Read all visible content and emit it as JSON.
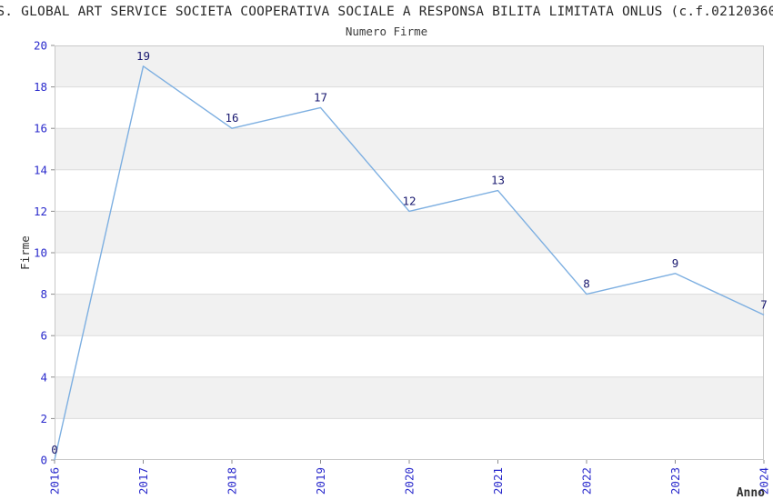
{
  "header": {
    "title": "S. GLOBAL ART SERVICE SOCIETA COOPERATIVA SOCIALE A RESPONSA BILITA LIMITATA ONLUS (c.f.02120360",
    "subtitle": "Numero Firme"
  },
  "chart_data": {
    "type": "line",
    "title": "Numero Firme",
    "xlabel": "Anno",
    "ylabel": "Firme",
    "categories": [
      "2016",
      "2017",
      "2018",
      "2019",
      "2020",
      "2021",
      "2022",
      "2023",
      "2024"
    ],
    "values": [
      0,
      19,
      16,
      17,
      12,
      13,
      8,
      9,
      7
    ],
    "ylim": [
      0,
      20
    ],
    "y_tick_step": 2,
    "grid": "horizontal-lines",
    "background_bands": "alternating-2-unit",
    "legend": "none",
    "colors": {
      "line": "#7dafe1",
      "axis_tick_label": "#2a2acc",
      "data_label": "#191970",
      "band_fill": "#f1f1f1",
      "grid_line": "#dcdcdc",
      "plot_border": "#c8c8c8",
      "tick_mark": "#8c8c8c",
      "axis_title_text": "#303030"
    }
  }
}
